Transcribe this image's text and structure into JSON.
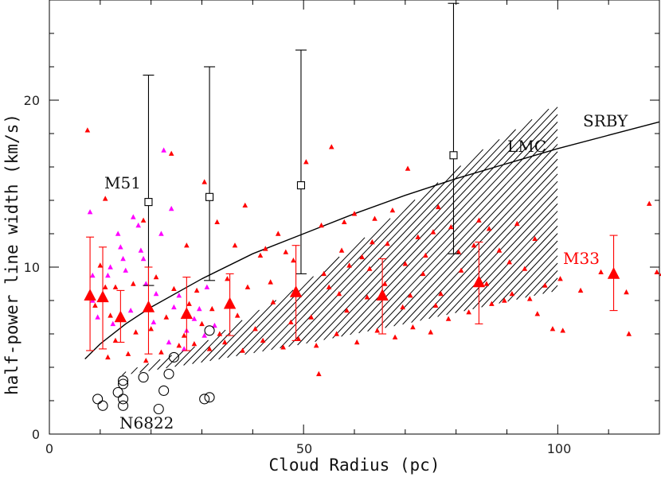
{
  "chart_data": {
    "type": "scatter",
    "xlabel": "Cloud Radius (pc)",
    "ylabel": "half-power line width (km/s)",
    "xlim": [
      0,
      120
    ],
    "ylim": [
      0,
      26
    ],
    "x_ticks": [
      "0",
      "50",
      "100"
    ],
    "y_ticks": [
      "0",
      "10",
      "20"
    ],
    "grid": false,
    "annotations": {
      "m51": "M51",
      "lmc": "LMC",
      "srby": "SRBY",
      "m33": "M33",
      "n6822": "N6822"
    },
    "colors": {
      "m33_points": "#ff0000",
      "magenta_points": "#ff00ff",
      "ink": "#000000"
    },
    "srby_curve": {
      "x": [
        7,
        10,
        15,
        20,
        30,
        40,
        50,
        60,
        70,
        80,
        90,
        100,
        110,
        120
      ],
      "y": [
        4.5,
        5.4,
        6.6,
        7.6,
        9.3,
        10.8,
        12.0,
        13.2,
        14.3,
        15.3,
        16.2,
        17.1,
        17.9,
        18.7
      ]
    },
    "lmc_band": {
      "x_range": [
        12,
        100
      ],
      "lower_edge": [
        [
          12,
          3.4
        ],
        [
          30,
          4.3
        ],
        [
          50,
          5.4
        ],
        [
          70,
          6.6
        ],
        [
          85,
          7.6
        ],
        [
          100,
          8.6
        ]
      ],
      "upper_edge": [
        [
          12,
          3.4
        ],
        [
          30,
          5.4
        ],
        [
          50,
          9.0
        ],
        [
          70,
          13.6
        ],
        [
          85,
          17.0
        ],
        [
          100,
          19.8
        ]
      ]
    },
    "m51_binned": [
      {
        "x": 19.5,
        "y": 13.9,
        "y_low": 8.9,
        "y_high": 21.5
      },
      {
        "x": 31.5,
        "y": 14.2,
        "y_low": 9.2,
        "y_high": 22.0
      },
      {
        "x": 49.5,
        "y": 14.9,
        "y_low": 9.6,
        "y_high": 23.0
      },
      {
        "x": 79.5,
        "y": 16.7,
        "y_low": 10.8,
        "y_high": 25.8
      }
    ],
    "m33_binned": [
      {
        "x": 8.0,
        "y": 8.3,
        "y_low": 5.0,
        "y_high": 11.8
      },
      {
        "x": 10.5,
        "y": 8.2,
        "y_low": 5.1,
        "y_high": 11.2
      },
      {
        "x": 14.0,
        "y": 7.0,
        "y_low": 5.5,
        "y_high": 8.6
      },
      {
        "x": 19.5,
        "y": 7.6,
        "y_low": 4.8,
        "y_high": 10.0
      },
      {
        "x": 27.0,
        "y": 7.2,
        "y_low": 5.0,
        "y_high": 9.4
      },
      {
        "x": 35.5,
        "y": 7.8,
        "y_low": 5.9,
        "y_high": 9.6
      },
      {
        "x": 48.5,
        "y": 8.5,
        "y_low": 5.6,
        "y_high": 11.3
      },
      {
        "x": 65.5,
        "y": 8.3,
        "y_low": 6.0,
        "y_high": 10.5
      },
      {
        "x": 84.5,
        "y": 9.1,
        "y_low": 6.6,
        "y_high": 11.5
      },
      {
        "x": 111.0,
        "y": 9.6,
        "y_low": 7.4,
        "y_high": 11.9
      }
    ],
    "n6822_points": [
      [
        9.5,
        2.1
      ],
      [
        10.5,
        1.7
      ],
      [
        13.5,
        2.5
      ],
      [
        14.5,
        3.0
      ],
      [
        14.5,
        3.2
      ],
      [
        14.5,
        2.1
      ],
      [
        14.5,
        1.7
      ],
      [
        18.5,
        3.4
      ],
      [
        21.5,
        1.5
      ],
      [
        22.5,
        2.6
      ],
      [
        23.5,
        3.6
      ],
      [
        24.5,
        4.6
      ],
      [
        30.5,
        2.1
      ],
      [
        31.5,
        6.2
      ],
      [
        31.5,
        2.2
      ]
    ],
    "magenta_points": [
      [
        8.0,
        13.3
      ],
      [
        8.5,
        9.5
      ],
      [
        8.5,
        8.0
      ],
      [
        9.5,
        7.0
      ],
      [
        11.5,
        9.5
      ],
      [
        12.0,
        10.0
      ],
      [
        13.5,
        12.0
      ],
      [
        14.0,
        11.2
      ],
      [
        14.5,
        10.5
      ],
      [
        15.0,
        9.8
      ],
      [
        16.5,
        13.0
      ],
      [
        17.5,
        12.5
      ],
      [
        18.0,
        11.0
      ],
      [
        18.5,
        10.5
      ],
      [
        19.0,
        9.0
      ],
      [
        21.0,
        8.4
      ],
      [
        22.0,
        12.0
      ],
      [
        22.5,
        17.0
      ],
      [
        24.0,
        13.5
      ],
      [
        24.5,
        7.6
      ],
      [
        25.5,
        8.3
      ],
      [
        27.0,
        6.2
      ],
      [
        28.5,
        6.9
      ],
      [
        29.5,
        7.5
      ],
      [
        30.5,
        5.9
      ],
      [
        32.5,
        6.5
      ],
      [
        16.0,
        7.4
      ],
      [
        20.5,
        6.7
      ],
      [
        26.5,
        5.1
      ],
      [
        23.5,
        5.5
      ],
      [
        12.5,
        6.6
      ],
      [
        31.0,
        8.8
      ]
    ],
    "m33_points": [
      [
        7.5,
        18.2
      ],
      [
        11.0,
        14.1
      ],
      [
        18.5,
        12.8
      ],
      [
        24.0,
        16.8
      ],
      [
        27.0,
        11.3
      ],
      [
        30.5,
        15.1
      ],
      [
        33.0,
        12.7
      ],
      [
        38.5,
        13.7
      ],
      [
        41.5,
        10.7
      ],
      [
        45.0,
        12.0
      ],
      [
        50.5,
        16.3
      ],
      [
        53.5,
        12.5
      ],
      [
        55.5,
        17.2
      ],
      [
        60.0,
        13.2
      ],
      [
        63.5,
        11.5
      ],
      [
        67.5,
        13.4
      ],
      [
        70.5,
        15.9
      ],
      [
        72.5,
        11.8
      ],
      [
        75.5,
        12.1
      ],
      [
        79.0,
        12.4
      ],
      [
        84.5,
        12.8
      ],
      [
        88.5,
        11.0
      ],
      [
        92.0,
        12.6
      ],
      [
        95.5,
        11.7
      ],
      [
        99.0,
        6.3
      ],
      [
        108.5,
        9.7
      ],
      [
        113.5,
        8.5
      ],
      [
        118.0,
        13.8
      ],
      [
        119.5,
        9.7
      ],
      [
        114.0,
        6.0
      ],
      [
        120.5,
        9.6
      ],
      [
        104.5,
        8.6
      ],
      [
        101.0,
        6.2
      ],
      [
        89.5,
        8.0
      ],
      [
        96.0,
        7.2
      ],
      [
        86.0,
        9.0
      ],
      [
        81.0,
        9.8
      ],
      [
        77.0,
        8.4
      ],
      [
        73.5,
        9.6
      ],
      [
        69.5,
        7.6
      ],
      [
        66.0,
        9.0
      ],
      [
        62.5,
        8.2
      ],
      [
        58.5,
        7.4
      ],
      [
        55.0,
        8.8
      ],
      [
        51.5,
        7.0
      ],
      [
        47.5,
        6.7
      ],
      [
        44.0,
        7.9
      ],
      [
        40.5,
        6.3
      ],
      [
        37.0,
        7.1
      ],
      [
        33.5,
        6.0
      ],
      [
        30.0,
        6.6
      ],
      [
        26.5,
        5.9
      ],
      [
        23.0,
        7.0
      ],
      [
        20.0,
        6.3
      ],
      [
        17.0,
        6.1
      ],
      [
        13.0,
        5.6
      ],
      [
        11.5,
        4.6
      ],
      [
        15.5,
        4.8
      ],
      [
        19.0,
        4.4
      ],
      [
        22.0,
        4.9
      ],
      [
        25.5,
        5.3
      ],
      [
        28.5,
        5.4
      ],
      [
        31.5,
        5.1
      ],
      [
        34.5,
        5.5
      ],
      [
        38.0,
        5.0
      ],
      [
        42.0,
        5.6
      ],
      [
        46.0,
        5.2
      ],
      [
        49.0,
        5.7
      ],
      [
        52.5,
        5.3
      ],
      [
        53.0,
        3.6
      ],
      [
        56.5,
        6.0
      ],
      [
        60.5,
        5.5
      ],
      [
        64.5,
        6.2
      ],
      [
        68.0,
        5.8
      ],
      [
        71.5,
        6.4
      ],
      [
        75.0,
        6.1
      ],
      [
        78.5,
        6.9
      ],
      [
        82.5,
        7.3
      ],
      [
        87.0,
        7.8
      ],
      [
        91.0,
        8.4
      ],
      [
        94.5,
        8.1
      ],
      [
        97.5,
        8.9
      ],
      [
        100.5,
        9.3
      ],
      [
        63.0,
        9.9
      ],
      [
        59.0,
        10.1
      ],
      [
        54.0,
        9.6
      ],
      [
        48.0,
        10.4
      ],
      [
        43.5,
        9.1
      ],
      [
        39.0,
        8.8
      ],
      [
        35.0,
        9.3
      ],
      [
        29.0,
        8.6
      ],
      [
        24.5,
        8.7
      ],
      [
        21.0,
        9.4
      ],
      [
        16.5,
        9.0
      ],
      [
        13.0,
        8.8
      ],
      [
        10.0,
        10.1
      ],
      [
        36.5,
        11.3
      ],
      [
        42.5,
        11.1
      ],
      [
        46.5,
        10.9
      ],
      [
        57.5,
        11.0
      ],
      [
        61.5,
        10.6
      ],
      [
        66.5,
        11.4
      ],
      [
        70.0,
        10.2
      ],
      [
        74.0,
        10.7
      ],
      [
        80.5,
        10.9
      ],
      [
        83.5,
        11.3
      ],
      [
        90.5,
        10.3
      ],
      [
        93.5,
        9.9
      ],
      [
        58.0,
        12.7
      ],
      [
        64.0,
        12.9
      ],
      [
        76.5,
        13.6
      ],
      [
        86.5,
        12.3
      ],
      [
        11.0,
        8.8
      ],
      [
        9.0,
        7.7
      ],
      [
        12.0,
        7.1
      ],
      [
        27.5,
        7.8
      ],
      [
        32.0,
        7.5
      ],
      [
        57.0,
        8.4
      ],
      [
        71.0,
        8.3
      ],
      [
        76.0,
        7.7
      ]
    ]
  }
}
